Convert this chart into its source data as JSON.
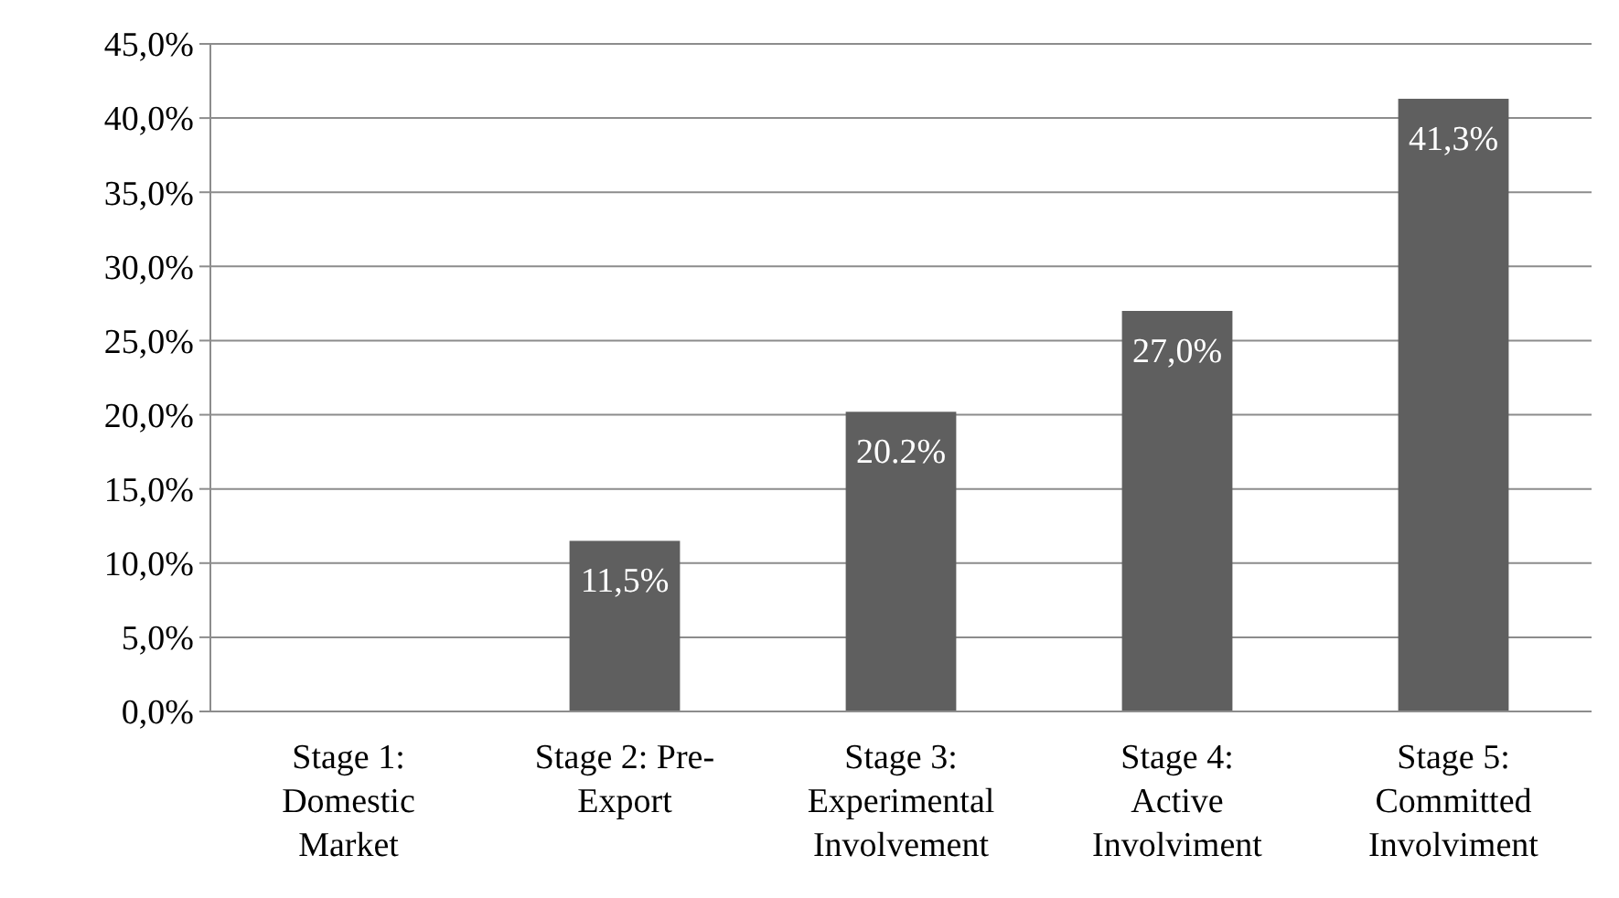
{
  "chart_data": {
    "type": "bar",
    "categories": [
      "Stage 1: Domestic Market",
      "Stage 2: Pre-Export",
      "Stage 3: Experimental Involvement",
      "Stage 4: Active Involviment",
      "Stage 5: Committed Involviment"
    ],
    "values": [
      0,
      11.5,
      20.2,
      27.0,
      41.3
    ],
    "value_labels": [
      null,
      "11,5%",
      "20.2%",
      "27,0%",
      "41,3%"
    ],
    "color": "#5f5f5f",
    "ylim": [
      0,
      45
    ],
    "yticks": [
      {
        "value": 0,
        "label": "0,0%"
      },
      {
        "value": 5,
        "label": "5,0%"
      },
      {
        "value": 10,
        "label": "10,0%"
      },
      {
        "value": 15,
        "label": "15,0%"
      },
      {
        "value": 20,
        "label": "20,0%"
      },
      {
        "value": 25,
        "label": "25,0%"
      },
      {
        "value": 30,
        "label": "30,0%"
      },
      {
        "value": 35,
        "label": "35,0%"
      },
      {
        "value": 40,
        "label": "40,0%"
      },
      {
        "value": 45,
        "label": "45,0%"
      }
    ],
    "grid": "y"
  }
}
